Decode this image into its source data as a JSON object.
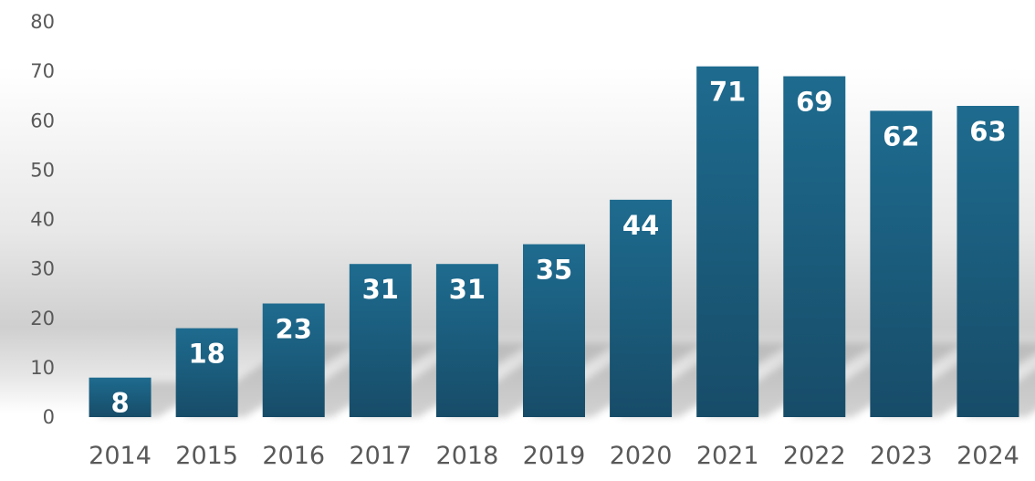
{
  "chart_data": {
    "type": "bar",
    "title": "",
    "xlabel": "",
    "ylabel": "",
    "categories": [
      "2014",
      "2015",
      "2016",
      "2017",
      "2018",
      "2019",
      "2020",
      "2021",
      "2022",
      "2023",
      "2024"
    ],
    "values": [
      8,
      18,
      23,
      31,
      31,
      35,
      44,
      71,
      69,
      62,
      63
    ],
    "value_labels": [
      "8",
      "18",
      "23",
      "31",
      "31",
      "35",
      "44",
      "71",
      "69",
      "62",
      "63"
    ],
    "ylim": [
      0,
      80
    ],
    "yticks": [
      0,
      10,
      20,
      30,
      40,
      50,
      60,
      70,
      80
    ],
    "ytick_labels": [
      "0",
      "10",
      "20",
      "30",
      "40",
      "50",
      "60",
      "70",
      "80"
    ],
    "grid": false,
    "legend": "none",
    "colors": {
      "bar_top": "#1d6a8e",
      "bar_bottom": "#174f6b",
      "data_label": "#ffffff",
      "tick_label": "#595959"
    }
  }
}
